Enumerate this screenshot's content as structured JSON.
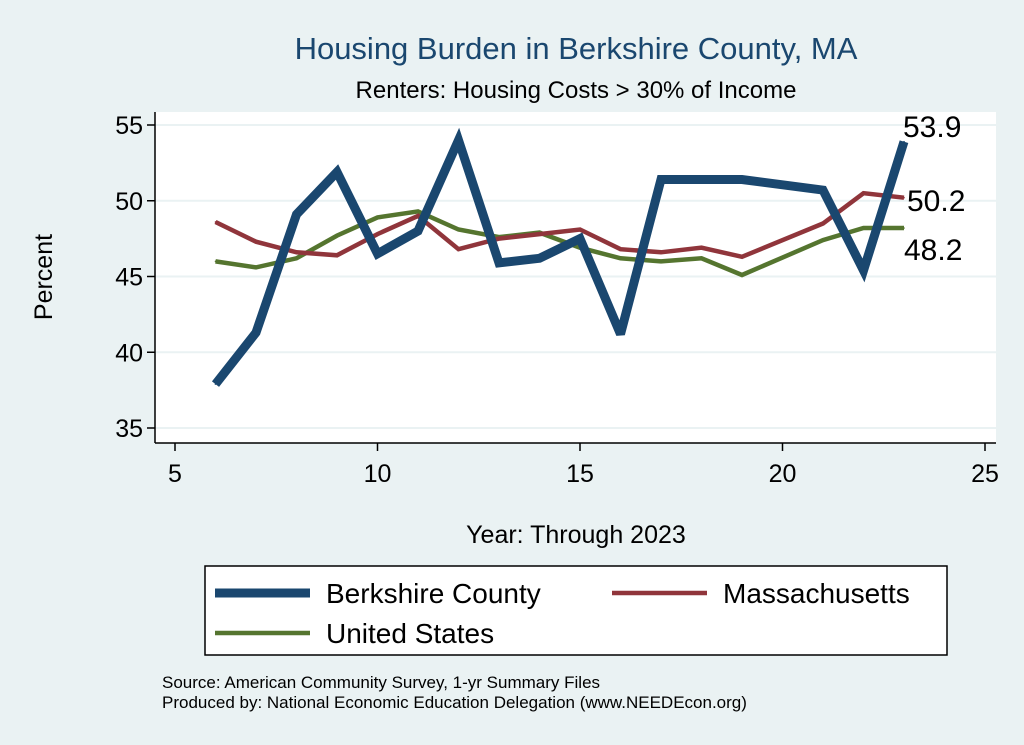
{
  "chart_data": {
    "type": "line",
    "title": "Housing Burden in Berkshire County, MA",
    "subtitle": "Renters: Housing Costs > 30% of Income",
    "xlabel": "Year: Through 2023",
    "ylabel": "Percent",
    "xlim": [
      5,
      25
    ],
    "ylim": [
      35,
      55
    ],
    "x_ticks": [
      5,
      10,
      15,
      20,
      25
    ],
    "y_ticks": [
      35,
      40,
      45,
      50,
      55
    ],
    "grid": true,
    "legend_position": "bottom",
    "series": [
      {
        "name": "Berkshire County",
        "color": "#1a476f",
        "x": [
          6,
          7,
          8,
          9,
          10,
          11,
          12,
          13,
          14,
          15,
          16,
          17,
          18,
          19,
          21,
          22,
          23
        ],
        "values": [
          37.9,
          41.3,
          49.1,
          51.9,
          46.5,
          48.0,
          54.0,
          45.9,
          46.2,
          47.5,
          41.2,
          51.4,
          51.4,
          51.4,
          50.7,
          45.4,
          53.9
        ],
        "end_label": "53.9"
      },
      {
        "name": "Massachusetts",
        "color": "#90353b",
        "x": [
          6,
          7,
          8,
          9,
          10,
          11,
          12,
          13,
          14,
          15,
          16,
          17,
          18,
          19,
          21,
          22,
          23
        ],
        "values": [
          48.6,
          47.3,
          46.6,
          46.4,
          47.8,
          49.0,
          46.8,
          47.5,
          47.8,
          48.1,
          46.8,
          46.6,
          46.9,
          46.3,
          48.5,
          50.5,
          50.2
        ],
        "end_label": "50.2"
      },
      {
        "name": "United States",
        "color": "#55752f",
        "x": [
          6,
          7,
          8,
          9,
          10,
          11,
          12,
          13,
          14,
          15,
          16,
          17,
          18,
          19,
          21,
          22,
          23
        ],
        "values": [
          46.0,
          45.6,
          46.2,
          47.7,
          48.9,
          49.3,
          48.1,
          47.6,
          47.9,
          46.9,
          46.2,
          46.0,
          46.2,
          45.1,
          47.4,
          48.2,
          48.2
        ],
        "end_label": "48.2"
      }
    ]
  },
  "footer": {
    "source": "Source: American Community Survey, 1-yr Summary Files",
    "produced_by": "Produced by: National Economic Education Delegation (www.NEEDEcon.org)"
  }
}
